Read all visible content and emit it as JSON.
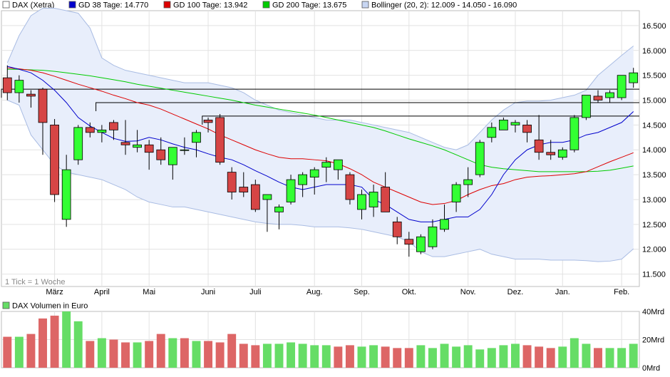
{
  "colors": {
    "up": "#33ff33",
    "down": "#d64545",
    "sma38": "#0000cc",
    "sma100": "#dd0000",
    "sma200": "#00cc00",
    "bollinger_fill": "#e8eefb",
    "bollinger_line": "#a9bce3",
    "vol_up": "#66dd66",
    "vol_down": "#dd6666",
    "grid": "#e2e2e2",
    "hline": "#000000"
  },
  "legend": [
    {
      "label": "DAX (Xetra)",
      "color": "#ffffff"
    },
    {
      "label": "GD 38 Tage: 14.770",
      "color": "#0000cc"
    },
    {
      "label": "GD 100 Tage: 13.942",
      "color": "#dd0000"
    },
    {
      "label": "GD 200 Tage: 13.675",
      "color": "#00cc00"
    },
    {
      "label": "Bollinger (20, 2): 12.009 - 14.050 - 16.090",
      "color": "#c8d6f2"
    }
  ],
  "tick_note": "1 Tick = 1 Woche",
  "volume_legend": "DAX Volumen in Euro",
  "chart_data": [
    {
      "type": "candlestick",
      "title": "DAX (Xetra)",
      "ylim": [
        11250,
        16800
      ],
      "yticks": [
        "11.500",
        "12.000",
        "12.500",
        "13.000",
        "13.500",
        "14.000",
        "14.500",
        "15.000",
        "15.500",
        "16.000",
        "16.500"
      ],
      "ytick_values": [
        11500,
        12000,
        12500,
        13000,
        13500,
        14000,
        14500,
        15000,
        15500,
        16000,
        16500
      ],
      "xlabels": [
        "März",
        "April",
        "Mai",
        "Juni",
        "Juli",
        "Aug.",
        "Sep.",
        "Okt.",
        "Nov.",
        "Dez.",
        "Jan.",
        "Feb."
      ],
      "xlabel_positions": [
        4.5,
        8.5,
        12.5,
        17.5,
        21.5,
        26.5,
        30.5,
        34.5,
        39.5,
        43.5,
        47.5,
        52.5
      ],
      "grid": true,
      "candles": [
        {
          "o": 15450,
          "h": 15700,
          "l": 15000,
          "c": 15150
        },
        {
          "o": 15150,
          "h": 15500,
          "l": 14950,
          "c": 15400
        },
        {
          "o": 15120,
          "h": 15200,
          "l": 14850,
          "c": 15080
        },
        {
          "o": 15220,
          "h": 15250,
          "l": 13900,
          "c": 14550
        },
        {
          "o": 14500,
          "h": 14620,
          "l": 12950,
          "c": 13100
        },
        {
          "o": 12600,
          "h": 13900,
          "l": 12450,
          "c": 13600
        },
        {
          "o": 13800,
          "h": 14500,
          "l": 13700,
          "c": 14450
        },
        {
          "o": 14450,
          "h": 14550,
          "l": 14250,
          "c": 14350
        },
        {
          "o": 14350,
          "h": 14500,
          "l": 14150,
          "c": 14400
        },
        {
          "o": 14550,
          "h": 14600,
          "l": 14200,
          "c": 14400
        },
        {
          "o": 14150,
          "h": 14600,
          "l": 13900,
          "c": 14100
        },
        {
          "o": 14050,
          "h": 14400,
          "l": 13950,
          "c": 14100
        },
        {
          "o": 14100,
          "h": 14200,
          "l": 13600,
          "c": 13950
        },
        {
          "o": 14000,
          "h": 14250,
          "l": 13700,
          "c": 13800
        },
        {
          "o": 13700,
          "h": 14000,
          "l": 13400,
          "c": 14050
        },
        {
          "o": 14000,
          "h": 14250,
          "l": 13900,
          "c": 14000
        },
        {
          "o": 14150,
          "h": 14400,
          "l": 13850,
          "c": 14350
        },
        {
          "o": 14600,
          "h": 14650,
          "l": 14350,
          "c": 14550
        },
        {
          "o": 14650,
          "h": 14720,
          "l": 13700,
          "c": 13750
        },
        {
          "o": 13550,
          "h": 13650,
          "l": 13000,
          "c": 13150
        },
        {
          "o": 13250,
          "h": 13550,
          "l": 13050,
          "c": 13150
        },
        {
          "o": 13300,
          "h": 13400,
          "l": 12750,
          "c": 12800
        },
        {
          "o": 13000,
          "h": 13100,
          "l": 12350,
          "c": 13100
        },
        {
          "o": 12750,
          "h": 12900,
          "l": 12400,
          "c": 12850
        },
        {
          "o": 12950,
          "h": 13500,
          "l": 12900,
          "c": 13400
        },
        {
          "o": 13300,
          "h": 13550,
          "l": 13050,
          "c": 13500
        },
        {
          "o": 13450,
          "h": 13650,
          "l": 13100,
          "c": 13600
        },
        {
          "o": 13650,
          "h": 13850,
          "l": 13350,
          "c": 13750
        },
        {
          "o": 13600,
          "h": 13800,
          "l": 13400,
          "c": 13800
        },
        {
          "o": 13500,
          "h": 13550,
          "l": 12900,
          "c": 13000
        },
        {
          "o": 12800,
          "h": 13200,
          "l": 12600,
          "c": 13100
        },
        {
          "o": 12850,
          "h": 13300,
          "l": 12650,
          "c": 13150
        },
        {
          "o": 13250,
          "h": 13550,
          "l": 12750,
          "c": 12750
        },
        {
          "o": 12550,
          "h": 12650,
          "l": 12100,
          "c": 12250
        },
        {
          "o": 12200,
          "h": 12350,
          "l": 11850,
          "c": 12100
        },
        {
          "o": 11950,
          "h": 12300,
          "l": 11900,
          "c": 12250
        },
        {
          "o": 12050,
          "h": 12600,
          "l": 12000,
          "c": 12450
        },
        {
          "o": 12400,
          "h": 12900,
          "l": 12350,
          "c": 12600
        },
        {
          "o": 12950,
          "h": 13350,
          "l": 12750,
          "c": 13300
        },
        {
          "o": 13300,
          "h": 13650,
          "l": 13050,
          "c": 13400
        },
        {
          "o": 13500,
          "h": 14200,
          "l": 13450,
          "c": 14150
        },
        {
          "o": 14250,
          "h": 14550,
          "l": 14150,
          "c": 14450
        },
        {
          "o": 14400,
          "h": 14650,
          "l": 14400,
          "c": 14600
        },
        {
          "o": 14500,
          "h": 14600,
          "l": 14350,
          "c": 14550
        },
        {
          "o": 14500,
          "h": 14600,
          "l": 14150,
          "c": 14350
        },
        {
          "o": 14200,
          "h": 14700,
          "l": 13800,
          "c": 13950
        },
        {
          "o": 13950,
          "h": 14200,
          "l": 13800,
          "c": 13900
        },
        {
          "o": 13850,
          "h": 14050,
          "l": 13800,
          "c": 14000
        },
        {
          "o": 14000,
          "h": 14700,
          "l": 13950,
          "c": 14650
        },
        {
          "o": 14650,
          "h": 15100,
          "l": 14600,
          "c": 15100
        },
        {
          "o": 15080,
          "h": 15200,
          "l": 14950,
          "c": 15000
        },
        {
          "o": 15050,
          "h": 15200,
          "l": 14950,
          "c": 15150
        },
        {
          "o": 15050,
          "h": 15500,
          "l": 15000,
          "c": 15500
        },
        {
          "o": 15350,
          "h": 15650,
          "l": 15250,
          "c": 15550
        }
      ],
      "sma38": [
        15680,
        15620,
        15550,
        15400,
        15200,
        14950,
        14650,
        14480,
        14350,
        14230,
        14170,
        14180,
        14250,
        14200,
        14120,
        14050,
        14000,
        13920,
        13850,
        13800,
        13700,
        13580,
        13470,
        13350,
        13250,
        13200,
        13250,
        13300,
        13300,
        13300,
        13250,
        13000,
        12900,
        12750,
        12600,
        12550,
        12550,
        12600,
        12650,
        12650,
        12800,
        13100,
        13500,
        13800,
        14000,
        14100,
        14150,
        14150,
        14200,
        14300,
        14350,
        14450,
        14550,
        14770
      ],
      "sma100": [
        15650,
        15630,
        15600,
        15550,
        15480,
        15400,
        15320,
        15250,
        15180,
        15100,
        15030,
        14950,
        14900,
        14820,
        14720,
        14620,
        14520,
        14420,
        14300,
        14200,
        14100,
        14000,
        13920,
        13850,
        13820,
        13820,
        13800,
        13780,
        13720,
        13620,
        13500,
        13350,
        13250,
        13150,
        13050,
        12950,
        12900,
        12920,
        12980,
        13100,
        13200,
        13280,
        13320,
        13400,
        13450,
        13470,
        13480,
        13500,
        13520,
        13560,
        13660,
        13760,
        13850,
        13942
      ],
      "sma200": [
        15620,
        15620,
        15610,
        15600,
        15580,
        15550,
        15520,
        15490,
        15450,
        15410,
        15370,
        15320,
        15280,
        15240,
        15200,
        15160,
        15120,
        15080,
        15040,
        15000,
        14950,
        14900,
        14860,
        14820,
        14780,
        14740,
        14700,
        14650,
        14600,
        14550,
        14500,
        14450,
        14380,
        14300,
        14220,
        14150,
        14080,
        14000,
        13900,
        13800,
        13700,
        13650,
        13620,
        13600,
        13580,
        13560,
        13560,
        13560,
        13560,
        13560,
        13570,
        13590,
        13630,
        13675
      ],
      "bollinger_upper": [
        15750,
        16300,
        16700,
        16850,
        16850,
        16800,
        16750,
        16450,
        15850,
        15700,
        15600,
        15550,
        15500,
        15450,
        15400,
        15350,
        15350,
        15350,
        15300,
        15250,
        15150,
        15000,
        14900,
        14800,
        14750,
        14700,
        14650,
        14600,
        14600,
        14600,
        14550,
        14500,
        14450,
        14400,
        14350,
        14250,
        14150,
        14050,
        14000,
        14100,
        14350,
        14600,
        14800,
        14950,
        14980,
        14980,
        15000,
        15050,
        15100,
        15200,
        15500,
        15700,
        15900,
        16090
      ],
      "bollinger_lower": [
        15000,
        14900,
        14300,
        14000,
        13700,
        13550,
        13500,
        13450,
        13400,
        13300,
        13200,
        13050,
        12950,
        12900,
        12850,
        12850,
        12800,
        12750,
        12700,
        12650,
        12600,
        12550,
        12520,
        12500,
        12500,
        12480,
        12450,
        12450,
        12450,
        12430,
        12400,
        12350,
        12300,
        12250,
        12150,
        11950,
        11850,
        11850,
        11900,
        11950,
        12000,
        11900,
        11850,
        11800,
        11800,
        11800,
        11780,
        11780,
        11780,
        11770,
        11750,
        11760,
        11800,
        12009
      ],
      "hlines": [
        15220,
        14950,
        14680
      ]
    },
    {
      "type": "bar",
      "title": "DAX Volumen in Euro",
      "ylim": [
        0,
        40
      ],
      "yticks": [
        "0Mrd",
        "20Mrd",
        "40Mrd"
      ],
      "ytick_values": [
        0,
        20,
        40
      ],
      "values": [
        22,
        22,
        24,
        35,
        37,
        40,
        33,
        19,
        21,
        20,
        18,
        18,
        19,
        24,
        21,
        21,
        19,
        19,
        18,
        24,
        17,
        16,
        17,
        17,
        18,
        17,
        16,
        16,
        15,
        16,
        15,
        16,
        15,
        14,
        14,
        16,
        14,
        17,
        15,
        16,
        13,
        14,
        16,
        17,
        16,
        15,
        14,
        15,
        21,
        17,
        14,
        14,
        14,
        17
      ],
      "up": [
        false,
        true,
        false,
        false,
        false,
        true,
        true,
        false,
        true,
        false,
        false,
        true,
        false,
        false,
        true,
        false,
        true,
        false,
        false,
        false,
        false,
        false,
        true,
        true,
        true,
        true,
        true,
        true,
        false,
        false,
        true,
        true,
        false,
        false,
        false,
        true,
        true,
        true,
        true,
        true,
        true,
        true,
        true,
        true,
        false,
        false,
        false,
        true,
        true,
        true,
        false,
        true,
        true,
        true
      ]
    }
  ]
}
